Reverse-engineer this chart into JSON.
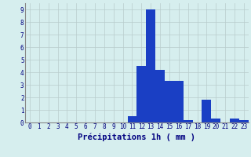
{
  "hours": [
    0,
    1,
    2,
    3,
    4,
    5,
    6,
    7,
    8,
    9,
    10,
    11,
    12,
    13,
    14,
    15,
    16,
    17,
    18,
    19,
    20,
    21,
    22,
    23
  ],
  "values": [
    0,
    0,
    0,
    0,
    0,
    0,
    0,
    0,
    0,
    0,
    0,
    0.5,
    4.5,
    9.0,
    4.2,
    3.3,
    3.3,
    0.2,
    0,
    1.8,
    0.3,
    0,
    0.3,
    0.2
  ],
  "bar_color": "#1a3fc4",
  "bar_edge_color": "#1a3fc4",
  "background_color": "#d6eeee",
  "grid_color": "#b8cccc",
  "text_color": "#000080",
  "xlabel": "Précipitations 1h ( mm )",
  "ylim": [
    0,
    9.5
  ],
  "yticks": [
    0,
    1,
    2,
    3,
    4,
    5,
    6,
    7,
    8,
    9
  ],
  "xticks": [
    0,
    1,
    2,
    3,
    4,
    5,
    6,
    7,
    8,
    9,
    10,
    11,
    12,
    13,
    14,
    15,
    16,
    17,
    18,
    19,
    20,
    21,
    22,
    23
  ],
  "tick_fontsize": 5.5,
  "xlabel_fontsize": 7.5,
  "bar_width": 1.0
}
